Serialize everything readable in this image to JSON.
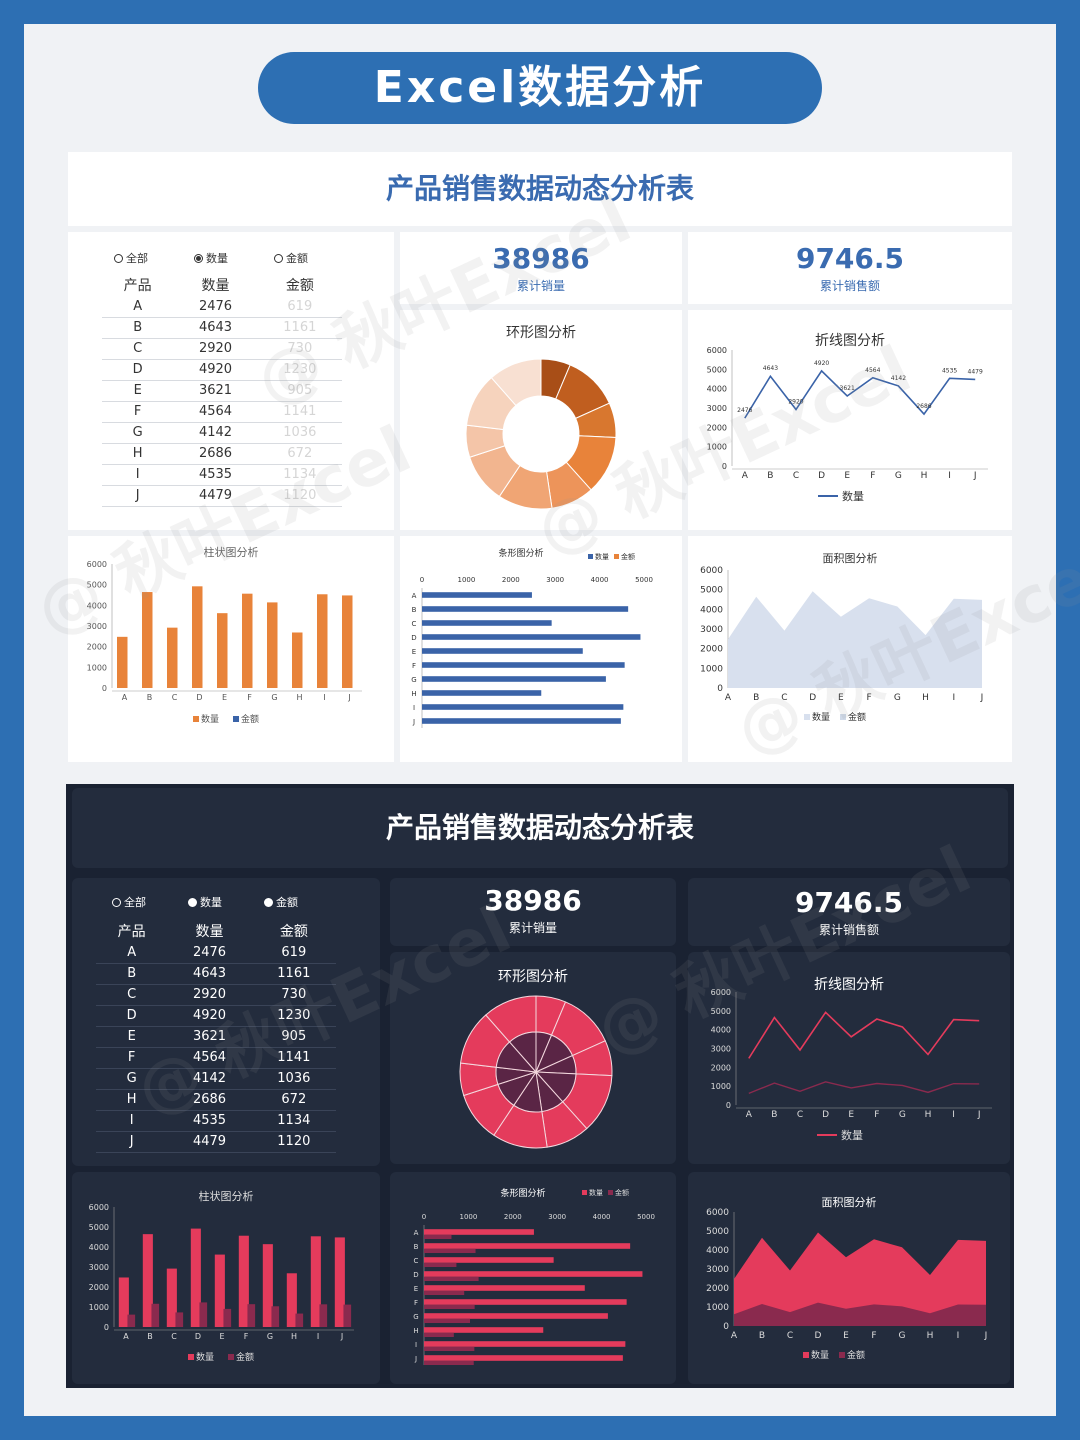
{
  "header": {
    "title": "Excel数据分析"
  },
  "dashboard": {
    "title": "产品销售数据动态分析表",
    "radio_options": [
      "全部",
      "数量",
      "金额"
    ],
    "table_headers": [
      "产品",
      "数量",
      "金额"
    ],
    "rows": [
      {
        "p": "A",
        "q": "2476",
        "a": "619"
      },
      {
        "p": "B",
        "q": "4643",
        "a": "1161"
      },
      {
        "p": "C",
        "q": "2920",
        "a": "730"
      },
      {
        "p": "D",
        "q": "4920",
        "a": "1230"
      },
      {
        "p": "E",
        "q": "3621",
        "a": "905"
      },
      {
        "p": "F",
        "q": "4564",
        "a": "1141"
      },
      {
        "p": "G",
        "q": "4142",
        "a": "1036"
      },
      {
        "p": "H",
        "q": "2686",
        "a": "672"
      },
      {
        "p": "I",
        "q": "4535",
        "a": "1134"
      },
      {
        "p": "J",
        "q": "4479",
        "a": "1120"
      }
    ],
    "kpi1": {
      "value": "38986",
      "label": "累计销量"
    },
    "kpi2": {
      "value": "9746.5",
      "label": "累计销售额"
    },
    "donut_title": "环形图分析",
    "line_title": "折线图分析",
    "bar_title": "柱状图分析",
    "hbar_title": "条形图分析",
    "area_title": "面积图分析",
    "legend_qty": "数量",
    "legend_amt": "金额"
  },
  "watermark": "@ 秋叶Excel",
  "colors": {
    "brand_blue": "#2d6fb3",
    "orange": "#e8833a",
    "bar_blue": "#3a63a8",
    "dark_bg": "#232c3d",
    "red": "#e43b5c",
    "dark_red": "#8a2a4e"
  },
  "chart_data": {
    "type": "bar",
    "categories": [
      "A",
      "B",
      "C",
      "D",
      "E",
      "F",
      "G",
      "H",
      "I",
      "J"
    ],
    "series": [
      {
        "name": "数量",
        "values": [
          2476,
          4643,
          2920,
          4920,
          3621,
          4564,
          4142,
          2686,
          4535,
          4479
        ]
      },
      {
        "name": "金额",
        "values": [
          619,
          1161,
          730,
          1230,
          905,
          1141,
          1036,
          672,
          1134,
          1120
        ]
      }
    ],
    "ylim": [
      0,
      6000
    ],
    "yticks": [
      0,
      1000,
      2000,
      3000,
      4000,
      5000,
      6000
    ]
  }
}
